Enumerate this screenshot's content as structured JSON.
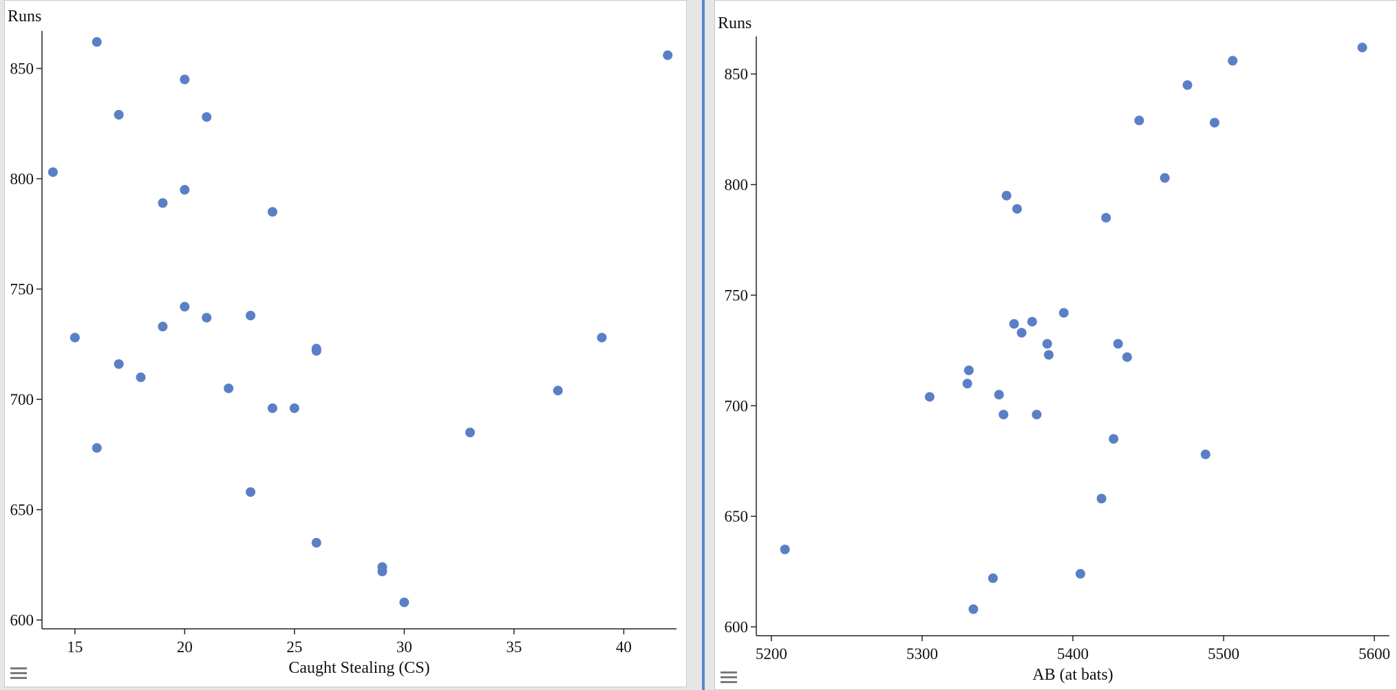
{
  "colors": {
    "point": "#5b7fc7",
    "axis": "#222222",
    "divider": "#5b84cf"
  },
  "icons": {
    "panel_menu": "hamburger-menu-icon"
  },
  "chart_data": [
    {
      "type": "scatter",
      "title": "",
      "ylabel": "Runs",
      "xlabel": "Caught Stealing (CS)",
      "xlim": [
        13.5,
        42.4
      ],
      "ylim": [
        596,
        867
      ],
      "xticks": [
        15,
        20,
        25,
        30,
        35,
        40
      ],
      "yticks": [
        600,
        650,
        700,
        750,
        800,
        850
      ],
      "grid": false,
      "points": [
        {
          "x": 16,
          "y": 862
        },
        {
          "x": 42,
          "y": 856
        },
        {
          "x": 20,
          "y": 845
        },
        {
          "x": 17,
          "y": 829
        },
        {
          "x": 21,
          "y": 828
        },
        {
          "x": 14,
          "y": 803
        },
        {
          "x": 20,
          "y": 795
        },
        {
          "x": 19,
          "y": 789
        },
        {
          "x": 24,
          "y": 785
        },
        {
          "x": 20,
          "y": 742
        },
        {
          "x": 23,
          "y": 738
        },
        {
          "x": 21,
          "y": 737
        },
        {
          "x": 19,
          "y": 733
        },
        {
          "x": 15,
          "y": 728
        },
        {
          "x": 39,
          "y": 728
        },
        {
          "x": 26,
          "y": 723
        },
        {
          "x": 26,
          "y": 722
        },
        {
          "x": 17,
          "y": 716
        },
        {
          "x": 18,
          "y": 710
        },
        {
          "x": 22,
          "y": 705
        },
        {
          "x": 37,
          "y": 704
        },
        {
          "x": 24,
          "y": 696
        },
        {
          "x": 25,
          "y": 696
        },
        {
          "x": 33,
          "y": 685
        },
        {
          "x": 16,
          "y": 678
        },
        {
          "x": 23,
          "y": 658
        },
        {
          "x": 26,
          "y": 635
        },
        {
          "x": 29,
          "y": 624
        },
        {
          "x": 29,
          "y": 622
        },
        {
          "x": 30,
          "y": 608
        }
      ]
    },
    {
      "type": "scatter",
      "title": "",
      "ylabel": "Runs",
      "xlabel": "AB (at bats)",
      "xlim": [
        5190,
        5610
      ],
      "ylim": [
        596,
        867
      ],
      "xticks": [
        5200,
        5300,
        5400,
        5500,
        5600
      ],
      "yticks": [
        600,
        650,
        700,
        750,
        800,
        850
      ],
      "grid": false,
      "points": [
        {
          "x": 5592,
          "y": 862
        },
        {
          "x": 5506,
          "y": 856
        },
        {
          "x": 5476,
          "y": 845
        },
        {
          "x": 5444,
          "y": 829
        },
        {
          "x": 5494,
          "y": 828
        },
        {
          "x": 5461,
          "y": 803
        },
        {
          "x": 5356,
          "y": 795
        },
        {
          "x": 5363,
          "y": 789
        },
        {
          "x": 5422,
          "y": 785
        },
        {
          "x": 5394,
          "y": 742
        },
        {
          "x": 5373,
          "y": 738
        },
        {
          "x": 5361,
          "y": 737
        },
        {
          "x": 5366,
          "y": 733
        },
        {
          "x": 5383,
          "y": 728
        },
        {
          "x": 5430,
          "y": 728
        },
        {
          "x": 5384,
          "y": 723
        },
        {
          "x": 5436,
          "y": 722
        },
        {
          "x": 5331,
          "y": 716
        },
        {
          "x": 5330,
          "y": 710
        },
        {
          "x": 5351,
          "y": 705
        },
        {
          "x": 5305,
          "y": 704
        },
        {
          "x": 5354,
          "y": 696
        },
        {
          "x": 5376,
          "y": 696
        },
        {
          "x": 5427,
          "y": 685
        },
        {
          "x": 5488,
          "y": 678
        },
        {
          "x": 5419,
          "y": 658
        },
        {
          "x": 5209,
          "y": 635
        },
        {
          "x": 5405,
          "y": 624
        },
        {
          "x": 5347,
          "y": 622
        },
        {
          "x": 5334,
          "y": 608
        }
      ]
    }
  ]
}
